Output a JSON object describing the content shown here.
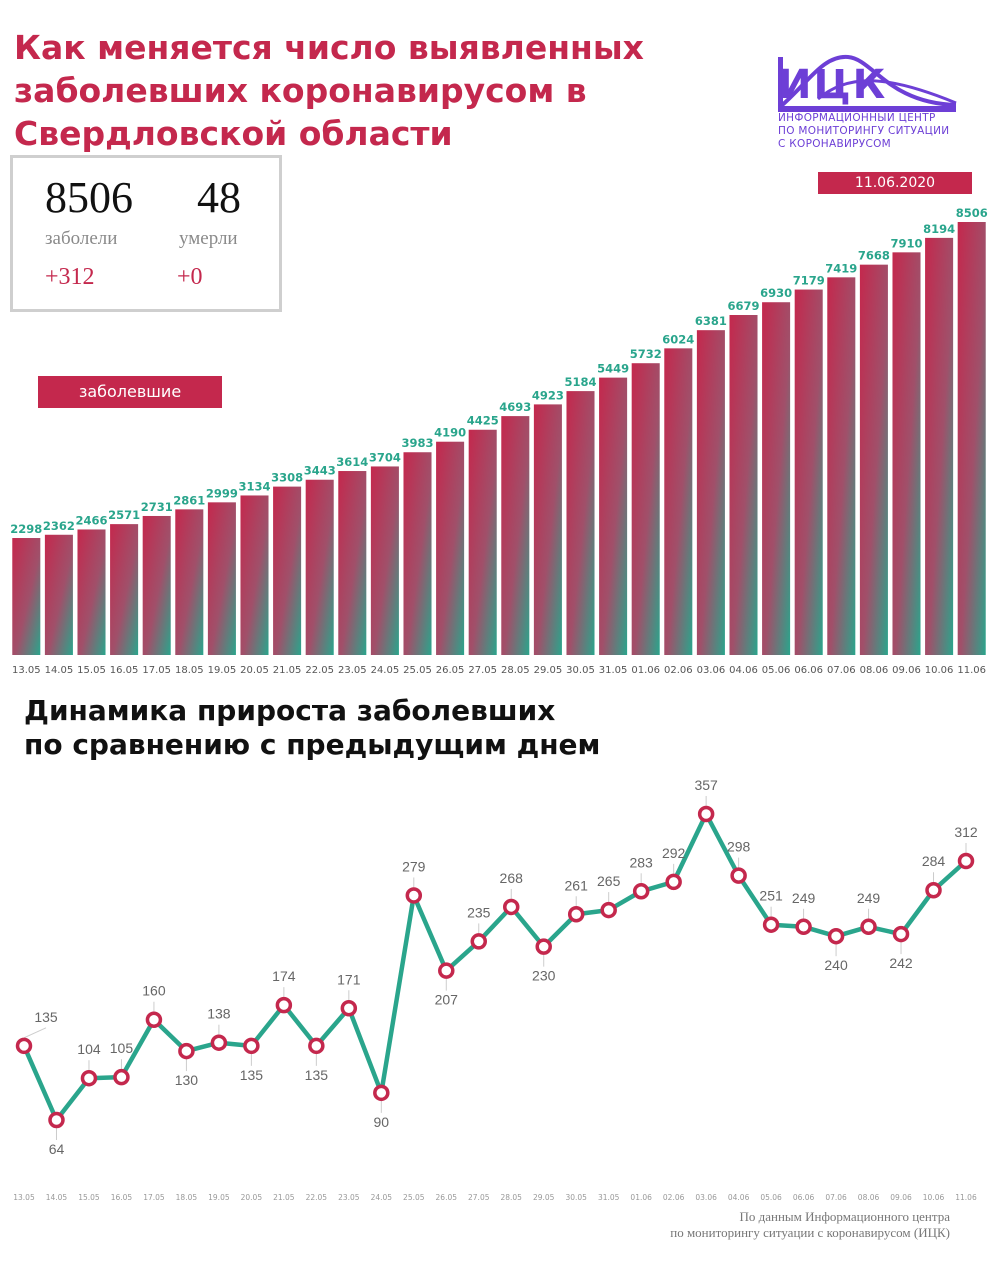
{
  "header": {
    "title_lines": [
      "Как меняется число выявленных",
      "заболевших коронавирусом в",
      "Свердловской области"
    ],
    "logo_name": "ИЦК",
    "logo_sub_lines": [
      "ИНФОРМАЦИОННЫЙ ЦЕНТР",
      "ПО МОНИТОРИНГУ СИТУАЦИИ",
      "С КОРОНАВИРУСОМ"
    ],
    "date": "11.06.2020",
    "logo_color": "#6d3fd6"
  },
  "stats": {
    "cases": "8506",
    "cases_label": "заболели",
    "cases_delta": "+312",
    "deaths": "48",
    "deaths_label": "умерли",
    "deaths_delta": "+0"
  },
  "legend_label": "заболевшие",
  "subtitle_lines": [
    "Динамика прироста заболевших",
    "по сравнению с предыдущим днем"
  ],
  "source_lines": [
    "По данным Информационного центра",
    "по мониторингу ситуации с коронавирусом (ИЦК)"
  ],
  "colors": {
    "accent": "#c4284d",
    "teal": "#2aa58c",
    "line": "#2aa58c",
    "marker": "#c4284d"
  },
  "chart_data": [
    {
      "type": "bar",
      "categories": [
        "13.05",
        "14.05",
        "15.05",
        "16.05",
        "17.05",
        "18.05",
        "19.05",
        "20.05",
        "21.05",
        "22.05",
        "23.05",
        "24.05",
        "25.05",
        "26.05",
        "27.05",
        "28.05",
        "29.05",
        "30.05",
        "31.05",
        "01.06",
        "02.06",
        "03.06",
        "04.06",
        "05.06",
        "06.06",
        "07.06",
        "08.06",
        "09.06",
        "10.06",
        "11.06"
      ],
      "values": [
        2298,
        2362,
        2466,
        2571,
        2731,
        2861,
        2999,
        3134,
        3308,
        3443,
        3614,
        3704,
        3983,
        4190,
        4425,
        4693,
        4923,
        5184,
        5449,
        5732,
        6024,
        6381,
        6679,
        6930,
        7179,
        7419,
        7668,
        7910,
        8194,
        8506
      ],
      "title": "",
      "xlabel": "",
      "ylabel": "",
      "ylim": [
        0,
        8506
      ]
    },
    {
      "type": "line",
      "categories": [
        "13.05",
        "14.05",
        "15.05",
        "16.05",
        "17.05",
        "18.05",
        "19.05",
        "20.05",
        "21.05",
        "22.05",
        "23.05",
        "24.05",
        "25.05",
        "26.05",
        "27.05",
        "28.05",
        "29.05",
        "30.05",
        "31.05",
        "01.06",
        "02.06",
        "03.06",
        "04.06",
        "05.06",
        "06.06",
        "07.06",
        "08.06",
        "09.06",
        "10.06",
        "11.06"
      ],
      "values": [
        135,
        64,
        104,
        105,
        160,
        130,
        138,
        135,
        174,
        135,
        171,
        90,
        279,
        207,
        235,
        268,
        230,
        261,
        265,
        283,
        292,
        357,
        298,
        251,
        249,
        240,
        249,
        242,
        284,
        312
      ],
      "title": "",
      "xlabel": "",
      "ylabel": "",
      "ylim": [
        60,
        357
      ]
    }
  ]
}
